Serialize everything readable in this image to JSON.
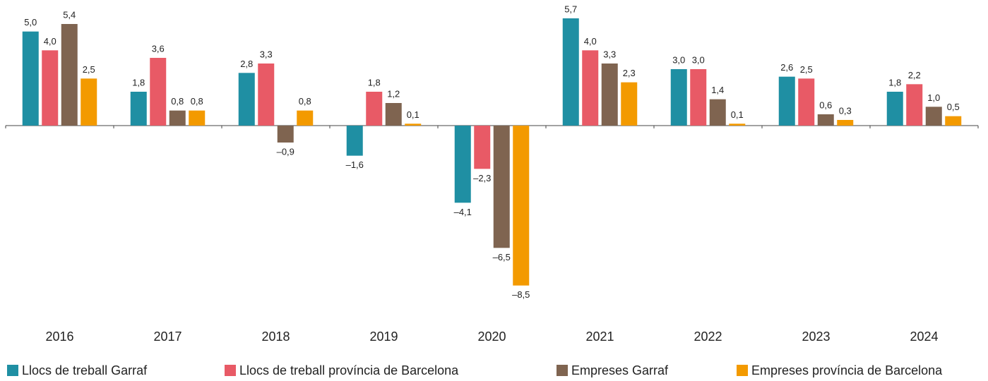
{
  "chart_data": {
    "type": "bar",
    "categories": [
      "2016",
      "2017",
      "2018",
      "2019",
      "2020",
      "2021",
      "2022",
      "2023",
      "2024"
    ],
    "series": [
      {
        "name": "Llocs de treball Garraf",
        "color": "#1f8fa3",
        "values": [
          5.0,
          1.8,
          2.8,
          -1.6,
          -4.1,
          5.7,
          3.0,
          2.6,
          1.8
        ],
        "value_labels": [
          "5,0",
          "1,8",
          "2,8",
          "–1,6",
          "–4,1",
          "5,7",
          "3,0",
          "2,6",
          "1,8"
        ]
      },
      {
        "name": "Llocs de treball província de Barcelona",
        "color": "#e85a66",
        "values": [
          4.0,
          3.6,
          3.3,
          1.8,
          -2.3,
          4.0,
          3.0,
          2.5,
          2.2
        ],
        "value_labels": [
          "4,0",
          "3,6",
          "3,3",
          "1,8",
          "–2,3",
          "4,0",
          "3,0",
          "2,5",
          "2,2"
        ]
      },
      {
        "name": "Empreses Garraf",
        "color": "#7f6450",
        "values": [
          5.4,
          0.8,
          -0.9,
          1.2,
          -6.5,
          3.3,
          1.4,
          0.6,
          1.0
        ],
        "value_labels": [
          "5,4",
          "0,8",
          "–0,9",
          "1,2",
          "–6,5",
          "3,3",
          "1,4",
          "0,6",
          "1,0"
        ]
      },
      {
        "name": "Empreses província de Barcelona",
        "color": "#f39a00",
        "values": [
          2.5,
          0.8,
          0.8,
          0.1,
          -8.5,
          2.3,
          0.1,
          0.3,
          0.5
        ],
        "value_labels": [
          "2,5",
          "0,8",
          "0,8",
          "0,1",
          "–8,5",
          "2,3",
          "0,1",
          "0,3",
          "0,5"
        ]
      }
    ]
  }
}
